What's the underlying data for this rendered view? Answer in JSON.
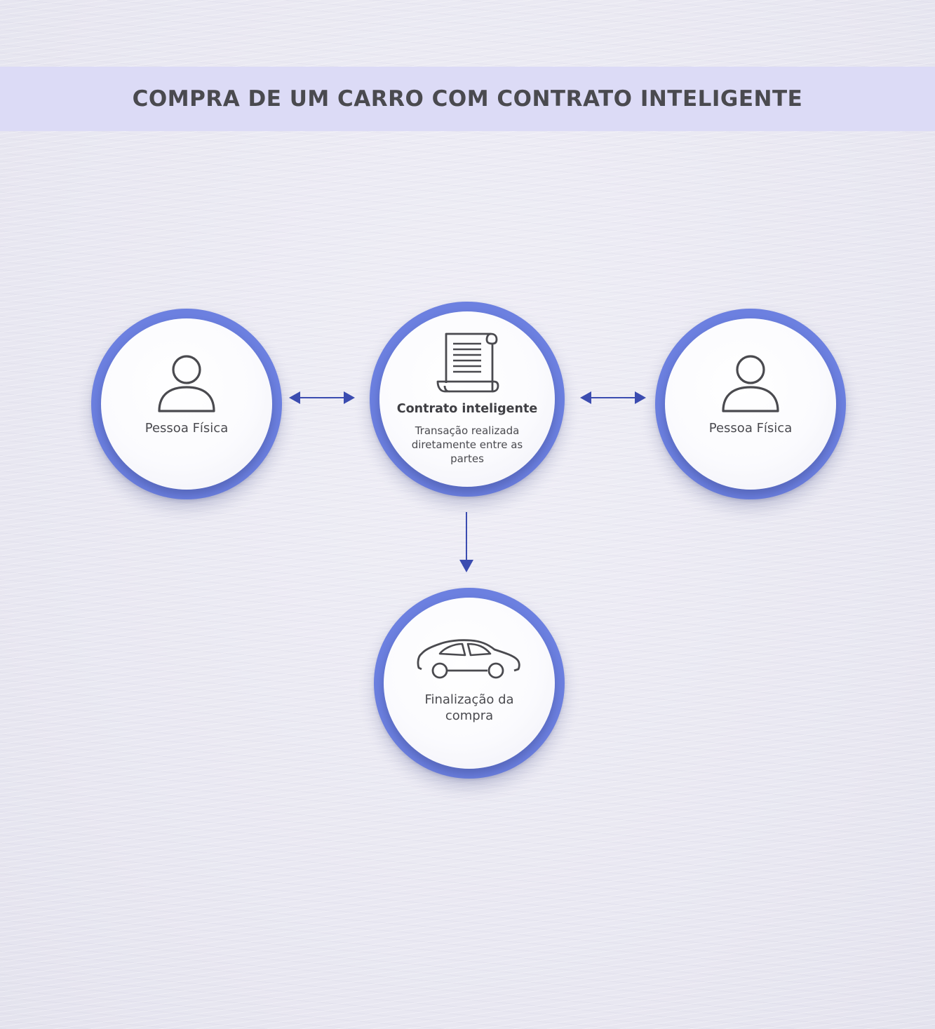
{
  "title": "COMPRA DE UM CARRO COM CONTRATO INTELIGENTE",
  "nodes": {
    "left": {
      "icon": "person-icon",
      "label": "Pessoa Física"
    },
    "center": {
      "icon": "contract-scroll-icon",
      "label": "Contrato inteligente",
      "description": "Transação realizada diretamente entre as partes"
    },
    "right": {
      "icon": "person-icon",
      "label": "Pessoa Física"
    },
    "bottom": {
      "icon": "car-icon",
      "label": "Finalização da compra"
    }
  },
  "colors": {
    "ring": "#6c80e0",
    "arrow": "#3b4cb0",
    "banner": "#dcdbf6",
    "text": "#4a4a4f"
  }
}
